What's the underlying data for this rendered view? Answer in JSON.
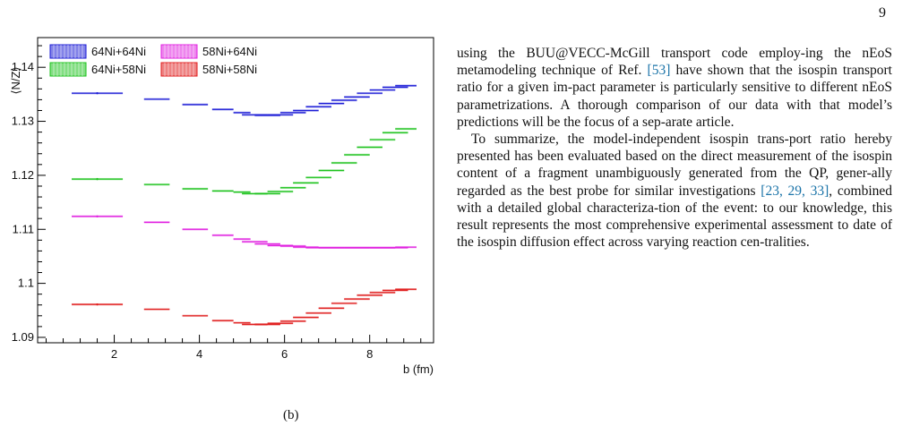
{
  "page": {
    "number": "9"
  },
  "figure": {
    "caption_fragment": "(b)",
    "chart_data": {
      "type": "line",
      "title": "",
      "xlabel": "b (fm)",
      "ylabel": "⟨N/Z⟩",
      "xlim": [
        0.2,
        9.5
      ],
      "ylim": [
        1.089,
        1.1455
      ],
      "xticks": [
        2,
        4,
        6,
        8
      ],
      "yticks": [
        1.09,
        1.1,
        1.11,
        1.12,
        1.13,
        1.14
      ],
      "ytick_labels": [
        "1.09",
        "1.1",
        "1.11",
        "1.12",
        "1.13",
        "1.14"
      ],
      "grid": false,
      "legend_position": "top-left",
      "x_bins": [
        [
          1.0,
          2.2
        ],
        [
          2.7,
          3.3
        ],
        [
          3.6,
          4.2
        ],
        [
          4.3,
          4.8
        ],
        [
          4.8,
          5.2
        ],
        [
          5.0,
          5.6
        ],
        [
          5.3,
          5.9
        ],
        [
          5.6,
          6.2
        ],
        [
          5.9,
          6.5
        ],
        [
          6.2,
          6.8
        ],
        [
          6.5,
          7.1
        ],
        [
          6.8,
          7.4
        ],
        [
          7.1,
          7.7
        ],
        [
          7.4,
          8.0
        ],
        [
          7.7,
          8.3
        ],
        [
          8.0,
          8.6
        ],
        [
          8.3,
          8.9
        ],
        [
          8.6,
          9.1
        ]
      ],
      "series": [
        {
          "name": "64Ni+64Ni",
          "color": "#1c1cd6",
          "values": [
            1.1352,
            1.1341,
            1.1331,
            1.1322,
            1.1316,
            1.1312,
            1.1311,
            1.1312,
            1.1316,
            1.132,
            1.1327,
            1.1333,
            1.1339,
            1.1345,
            1.1352,
            1.1358,
            1.1363,
            1.1366
          ]
        },
        {
          "name": "64Ni+58Ni",
          "color": "#1cc21c",
          "values": [
            1.1193,
            1.1183,
            1.1175,
            1.1171,
            1.1169,
            1.1166,
            1.1166,
            1.117,
            1.1177,
            1.1186,
            1.1196,
            1.1209,
            1.1223,
            1.1238,
            1.1252,
            1.1266,
            1.1279,
            1.1286
          ]
        },
        {
          "name": "58Ni+64Ni",
          "color": "#e020e0",
          "values": [
            1.1124,
            1.1113,
            1.11,
            1.1089,
            1.1082,
            1.1077,
            1.1073,
            1.107,
            1.1069,
            1.1067,
            1.1066,
            1.1066,
            1.1066,
            1.1066,
            1.1066,
            1.1066,
            1.1066,
            1.1067
          ]
        },
        {
          "name": "58Ni+58Ni",
          "color": "#e01c1c",
          "values": [
            1.0961,
            1.0952,
            1.094,
            1.0931,
            1.0927,
            1.0924,
            1.0924,
            1.0926,
            1.093,
            1.0937,
            1.0945,
            1.0954,
            1.0963,
            1.0971,
            1.0978,
            1.0983,
            1.0987,
            1.0989
          ]
        }
      ]
    }
  },
  "body": {
    "p1": [
      {
        "t": "using the BUU@VECC-McGill transport code employ-ing the nEoS metamodeling technique of Ref. "
      },
      {
        "t": "[53]",
        "cite": true
      },
      {
        "t": " have shown that the isospin transport ratio for a given im-pact parameter is particularly sensitive to different nEoS parametrizations. A thorough comparison of our data with that model’s predictions will be the focus of a sep-arate article."
      }
    ],
    "p2": [
      {
        "t": "To summarize, the model-independent isospin trans-port ratio hereby presented has been evaluated based on the direct measurement of the isospin content of a fragment unambiguously generated from the QP, gener-ally regarded as the best probe for similar investigations "
      },
      {
        "t": "[23, 29, 33]",
        "cite": true
      },
      {
        "t": ", combined with a detailed global characteriza-tion of the event: to our knowledge, this result represents the most comprehensive experimental assessment to date of the isospin diffusion effect across varying reaction cen-tralities."
      }
    ]
  }
}
